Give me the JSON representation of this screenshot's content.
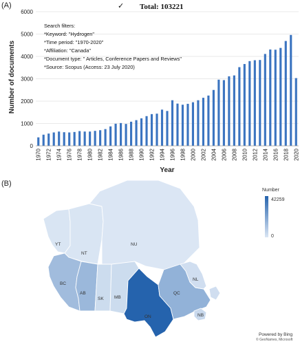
{
  "panels": {
    "a_label": "(A)",
    "b_label": "(B)"
  },
  "header": {
    "check_glyph": "✓",
    "total": "Total: 103221"
  },
  "filters": [
    "Search filters:",
    "*Keyword: \"Hydrogen\"",
    "*Time period: \"1970-2020\"",
    "*Affiliation: \"Canada\"",
    "*Document type: \" Articles, Conference Papers and Reviews\"",
    "*Source: Scopus (Access: 23 July 2020)"
  ],
  "colors": {
    "bar": "#3b74c0",
    "low": "#dbe6f4",
    "high": "#2563ad"
  },
  "chart_data": [
    {
      "type": "bar",
      "xlabel": "Year",
      "ylabel": "Number of documents",
      "ylim": [
        0,
        6000
      ],
      "yticks": [
        0,
        1000,
        2000,
        3000,
        4000,
        5000,
        6000
      ],
      "grid": true,
      "x": [
        1970,
        1971,
        1972,
        1973,
        1974,
        1975,
        1976,
        1977,
        1978,
        1979,
        1980,
        1981,
        1982,
        1983,
        1984,
        1985,
        1986,
        1987,
        1988,
        1989,
        1990,
        1991,
        1992,
        1993,
        1994,
        1995,
        1996,
        1997,
        1998,
        1999,
        2000,
        2001,
        2002,
        2003,
        2004,
        2005,
        2006,
        2007,
        2008,
        2009,
        2010,
        2011,
        2012,
        2013,
        2014,
        2015,
        2016,
        2017,
        2018,
        2019,
        2020
      ],
      "x_tick_labels": [
        "1970",
        "1972",
        "1974",
        "1976",
        "1978",
        "1980",
        "1982",
        "1984",
        "1986",
        "1988",
        "1990",
        "1992",
        "1994",
        "1996",
        "1998",
        "2000",
        "2002",
        "2004",
        "2006",
        "2008",
        "2010",
        "2012",
        "2014",
        "2016",
        "2018",
        "2020"
      ],
      "values": [
        380,
        500,
        550,
        600,
        640,
        610,
        600,
        620,
        660,
        640,
        640,
        670,
        700,
        750,
        870,
        990,
        1020,
        980,
        1080,
        1150,
        1230,
        1330,
        1420,
        1440,
        1620,
        1560,
        2040,
        1890,
        1840,
        1880,
        1950,
        2040,
        2150,
        2250,
        2500,
        2960,
        2940,
        3110,
        3150,
        3520,
        3660,
        3790,
        3830,
        3840,
        4110,
        4310,
        4300,
        4380,
        4690,
        4960,
        3030
      ]
    },
    {
      "type": "heatmap",
      "legend_title": "Number",
      "legend_max": "42259",
      "legend_min": "0",
      "regions": [
        {
          "code": "YT",
          "share": 0.01
        },
        {
          "code": "NT",
          "share": 0.01
        },
        {
          "code": "NU",
          "share": 0.0
        },
        {
          "code": "BC",
          "share": 0.32
        },
        {
          "code": "AB",
          "share": 0.35
        },
        {
          "code": "SK",
          "share": 0.08
        },
        {
          "code": "MB",
          "share": 0.08
        },
        {
          "code": "ON",
          "share": 1.0
        },
        {
          "code": "QC",
          "share": 0.4
        },
        {
          "code": "NL",
          "share": 0.06
        },
        {
          "code": "NB",
          "share": 0.1
        }
      ],
      "provider": "Powered by Bing",
      "credit": "© GeoNames, Microsoft"
    }
  ]
}
